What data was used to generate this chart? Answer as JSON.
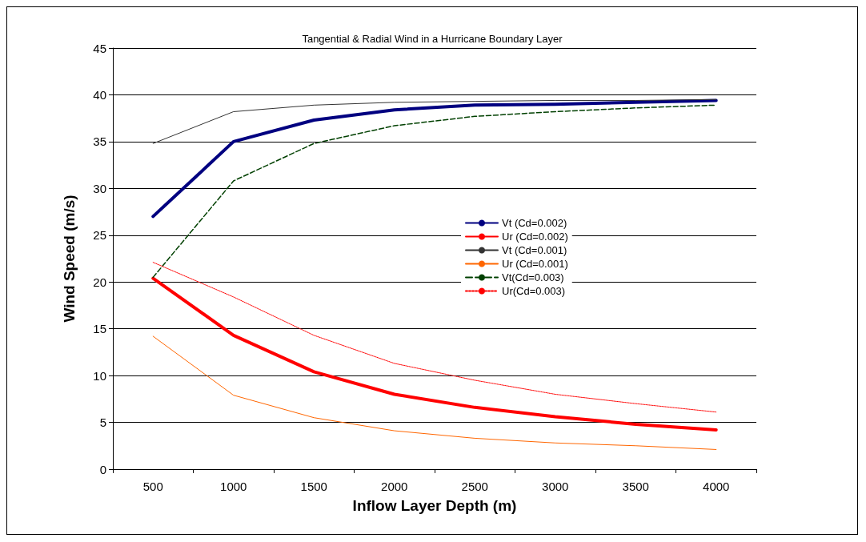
{
  "chart_data": {
    "type": "line",
    "title": "Tangential & Radial Wind in a Hurricane Boundary Layer",
    "xlabel": "Inflow Layer Depth (m)",
    "ylabel": "Wind Speed (m/s)",
    "categories": [
      "500",
      "1000",
      "1500",
      "2000",
      "2500",
      "3000",
      "3500",
      "4000"
    ],
    "ylim": [
      0,
      45
    ],
    "yticks": [
      0,
      5,
      10,
      15,
      20,
      25,
      30,
      35,
      40,
      45
    ],
    "grid": "y",
    "legend": "right",
    "marker": "none",
    "series": [
      {
        "name": "Vt (Cd=0.002)",
        "color": "#000080",
        "line_style": "solid",
        "values": [
          27,
          35,
          37.3,
          38.4,
          38.9,
          39,
          39.2,
          39.4
        ]
      },
      {
        "name": "Ur (Cd=0.002)",
        "color": "#ff0000",
        "line_style": "solid",
        "values": [
          20.4,
          14.3,
          10.4,
          8,
          6.6,
          5.6,
          4.8,
          4.2
        ]
      },
      {
        "name": "Vt (Cd=0.001)",
        "color": "#333333",
        "line_style": "solid",
        "values": [
          34.8,
          38.2,
          38.9,
          39.2,
          39.3,
          39.4,
          39.4,
          39.5
        ]
      },
      {
        "name": "Ur (Cd=0.001)",
        "color": "#ff6600",
        "line_style": "solid",
        "values": [
          14.2,
          7.9,
          5.5,
          4.1,
          3.3,
          2.8,
          2.5,
          2.1
        ]
      },
      {
        "name": "Vt(Cd=0.003)",
        "color": "#004000",
        "line_style": "dashed",
        "values": [
          20.5,
          30.8,
          34.8,
          36.7,
          37.7,
          38.2,
          38.6,
          38.9
        ]
      },
      {
        "name": "Ur(Cd=0.003)",
        "color": "#ff0000",
        "line_style": "dotted",
        "values": [
          22.1,
          18.4,
          14.3,
          11.3,
          9.5,
          8,
          7,
          6.1
        ]
      }
    ]
  }
}
